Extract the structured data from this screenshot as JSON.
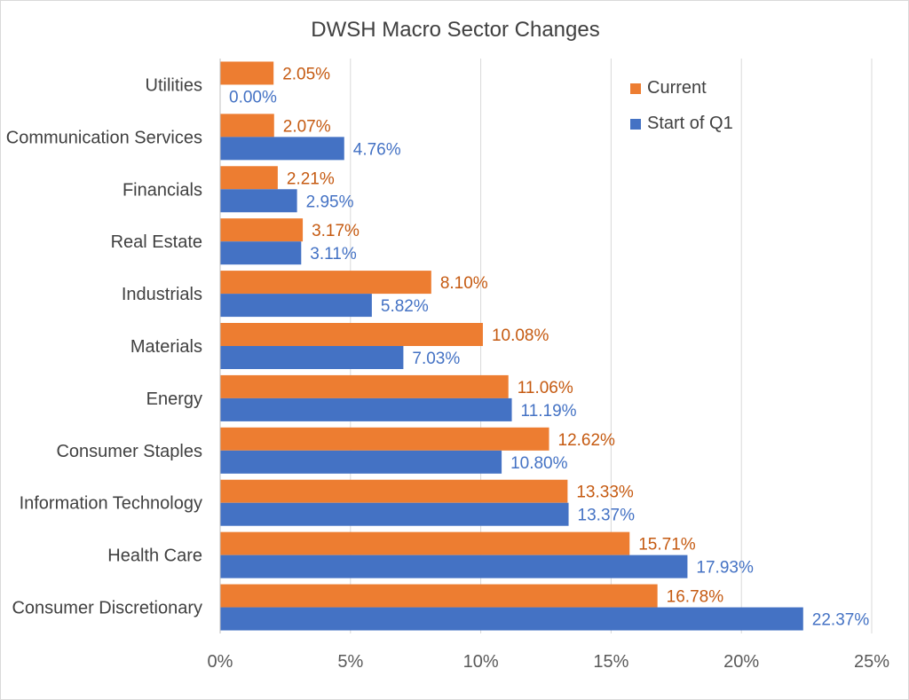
{
  "chart_data": {
    "type": "bar",
    "orientation": "horizontal",
    "title": "DWSH Macro Sector Changes",
    "xlabel": "",
    "ylabel": "",
    "xlim": [
      0,
      25
    ],
    "x_ticks": [
      0,
      5,
      10,
      15,
      20,
      25
    ],
    "x_tick_labels": [
      "0%",
      "5%",
      "10%",
      "15%",
      "20%",
      "25%"
    ],
    "grid": "vertical",
    "legend_position": "top-right",
    "categories": [
      "Utilities",
      "Communication Services",
      "Financials",
      "Real Estate",
      "Industrials",
      "Materials",
      "Energy",
      "Consumer Staples",
      "Information Technology",
      "Health Care",
      "Consumer Discretionary"
    ],
    "series": [
      {
        "name": "Current",
        "color": "#ED7D31",
        "label_color": "#C55A11",
        "values": [
          2.05,
          2.07,
          2.21,
          3.17,
          8.1,
          10.08,
          11.06,
          12.62,
          13.33,
          15.71,
          16.78
        ],
        "labels": [
          "2.05%",
          "2.07%",
          "2.21%",
          "3.17%",
          "8.10%",
          "10.08%",
          "11.06%",
          "12.62%",
          "13.33%",
          "15.71%",
          "16.78%"
        ]
      },
      {
        "name": "Start of Q1",
        "color": "#4472C4",
        "label_color": "#4472C4",
        "values": [
          0.0,
          4.76,
          2.95,
          3.11,
          5.82,
          7.03,
          11.19,
          10.8,
          13.37,
          17.93,
          22.37
        ],
        "labels": [
          "0.00%",
          "4.76%",
          "2.95%",
          "3.11%",
          "5.82%",
          "7.03%",
          "11.19%",
          "10.80%",
          "13.37%",
          "17.93%",
          "22.37%"
        ]
      }
    ]
  }
}
